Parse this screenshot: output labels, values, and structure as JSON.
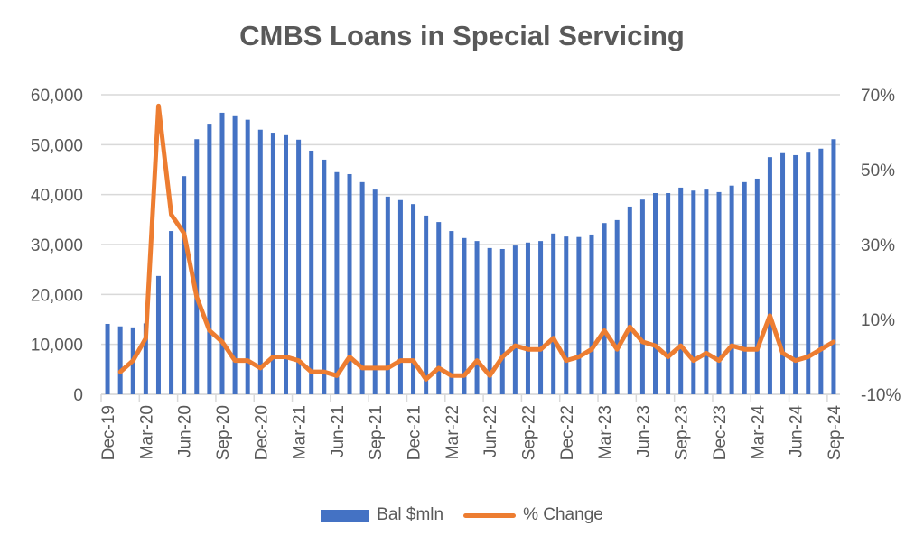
{
  "chart_data": {
    "type": "bar",
    "title": "CMBS Loans in Special Servicing",
    "xlabel": "",
    "ylabel": "",
    "ylabel_right": "",
    "ylim": [
      0,
      60000
    ],
    "ylim_right": [
      -0.1,
      0.7
    ],
    "y_ticks": [
      "0",
      "10,000",
      "20,000",
      "30,000",
      "40,000",
      "50,000",
      "60,000"
    ],
    "y_right_ticks": [
      "-10%",
      "10%",
      "30%",
      "50%",
      "70%"
    ],
    "x_tick_labels": [
      "Dec-19",
      "Mar-20",
      "Jun-20",
      "Sep-20",
      "Dec-20",
      "Mar-21",
      "Jun-21",
      "Sep-21",
      "Dec-21",
      "Mar-22",
      "Jun-22",
      "Sep-22",
      "Dec-22",
      "Mar-23",
      "Jun-23",
      "Sep-23",
      "Dec-23",
      "Mar-24",
      "Jun-24",
      "Sep-24"
    ],
    "grid": true,
    "legend_position": "bottom",
    "categories": [
      "Dec-19",
      "Jan-20",
      "Feb-20",
      "Mar-20",
      "Apr-20",
      "May-20",
      "Jun-20",
      "Jul-20",
      "Aug-20",
      "Sep-20",
      "Oct-20",
      "Nov-20",
      "Dec-20",
      "Jan-21",
      "Feb-21",
      "Mar-21",
      "Apr-21",
      "May-21",
      "Jun-21",
      "Jul-21",
      "Aug-21",
      "Sep-21",
      "Oct-21",
      "Nov-21",
      "Dec-21",
      "Jan-22",
      "Feb-22",
      "Mar-22",
      "Apr-22",
      "May-22",
      "Jun-22",
      "Jul-22",
      "Aug-22",
      "Sep-22",
      "Oct-22",
      "Nov-22",
      "Dec-22",
      "Jan-23",
      "Feb-23",
      "Mar-23",
      "Apr-23",
      "May-23",
      "Jun-23",
      "Jul-23",
      "Aug-23",
      "Sep-23",
      "Oct-23",
      "Nov-23",
      "Dec-23",
      "Jan-24",
      "Feb-24",
      "Mar-24",
      "Apr-24",
      "May-24",
      "Jun-24",
      "Jul-24",
      "Aug-24",
      "Sep-24"
    ],
    "series": [
      {
        "name": "Bal $mln",
        "type": "bar",
        "axis": "left",
        "color": "#4472C4",
        "values": [
          14100,
          13600,
          13400,
          14200,
          23700,
          32700,
          43700,
          51100,
          54200,
          56400,
          55700,
          55000,
          53000,
          52400,
          51900,
          51000,
          48800,
          47000,
          44500,
          44100,
          42500,
          41000,
          39600,
          38900,
          38100,
          35800,
          34500,
          32700,
          31300,
          30700,
          29300,
          29100,
          29800,
          30400,
          30700,
          32200,
          31600,
          31500,
          32000,
          34300,
          34900,
          37600,
          39000,
          40300,
          40300,
          41400,
          40800,
          41000,
          40500,
          41800,
          42500,
          43200,
          47500,
          48300,
          47900,
          48400,
          49200,
          51100
        ]
      },
      {
        "name": "% Change",
        "type": "line",
        "axis": "right",
        "color": "#ED7D31",
        "values": [
          null,
          -0.04,
          -0.01,
          0.05,
          0.67,
          0.38,
          0.33,
          0.16,
          0.07,
          0.04,
          -0.01,
          -0.01,
          -0.03,
          0.0,
          0.0,
          -0.01,
          -0.04,
          -0.04,
          -0.05,
          0.0,
          -0.03,
          -0.03,
          -0.03,
          -0.01,
          -0.01,
          -0.06,
          -0.03,
          -0.05,
          -0.05,
          -0.01,
          -0.05,
          0.0,
          0.03,
          0.02,
          0.02,
          0.05,
          -0.01,
          0.0,
          0.02,
          0.07,
          0.02,
          0.08,
          0.04,
          0.03,
          0.0,
          0.03,
          -0.01,
          0.01,
          -0.01,
          0.03,
          0.02,
          0.02,
          0.11,
          0.01,
          -0.01,
          0.0,
          0.02,
          0.04
        ]
      }
    ]
  },
  "legend": {
    "bar_label": "Bal $mln",
    "line_label": "% Change"
  }
}
